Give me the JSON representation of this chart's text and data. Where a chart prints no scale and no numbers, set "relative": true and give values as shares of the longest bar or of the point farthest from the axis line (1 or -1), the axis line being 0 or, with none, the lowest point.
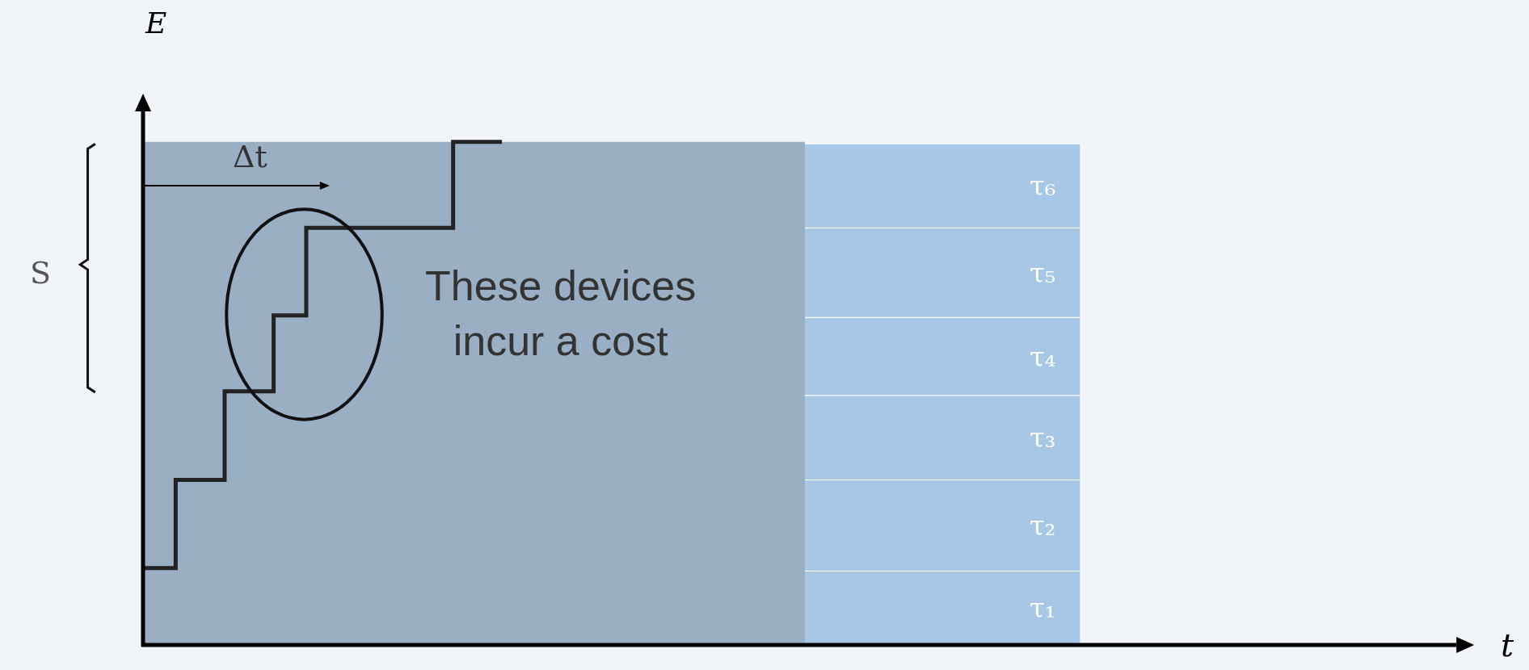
{
  "chart_data": {
    "type": "step",
    "relative": true,
    "ylabel": "E",
    "categories": [
      null,
      null,
      null,
      null,
      null,
      null,
      null,
      null,
      null,
      null,
      null,
      null,
      null,
      null,
      null,
      null,
      null,
      null,
      null,
      null,
      null,
      null,
      null
    ],
    "series": [
      {
        "color": "#222222",
        "values": [
          0.153,
          0.153,
          0.328,
          0.328,
          0.328,
          0.504,
          0.504,
          0.504,
          0.655,
          0.655,
          0.829,
          0.829,
          0.829,
          0.829,
          0.829,
          0.829,
          0.829,
          0.829,
          0.829,
          1.0,
          1.0,
          1.0,
          1.0
        ]
      }
    ],
    "bands": [
      {
        "axis": "y",
        "from": 0,
        "to": 0.147,
        "label": "τ₁",
        "color": "#a7c7e7"
      },
      {
        "axis": "y",
        "from": 0.147,
        "to": 0.328,
        "label": "τ₂",
        "color": "#a7c7e7"
      },
      {
        "axis": "y",
        "from": 0.328,
        "to": 0.496,
        "label": "τ₃",
        "color": "#a7c7e7"
      },
      {
        "axis": "y",
        "from": 0.496,
        "to": 0.651,
        "label": "τ₄",
        "color": "#a7c7e7"
      },
      {
        "axis": "y",
        "from": 0.651,
        "to": 0.829,
        "label": "τ₅",
        "color": "#a7c7e7"
      },
      {
        "axis": "y",
        "from": 0.829,
        "to": 0.996,
        "label": "τ₆",
        "color": "#a7c7e7"
      }
    ],
    "annotations": [
      "These devices\nincur a cost",
      "Δt",
      "S",
      "t"
    ],
    "grid": false,
    "marker": "none",
    "line_style": "solid"
  }
}
